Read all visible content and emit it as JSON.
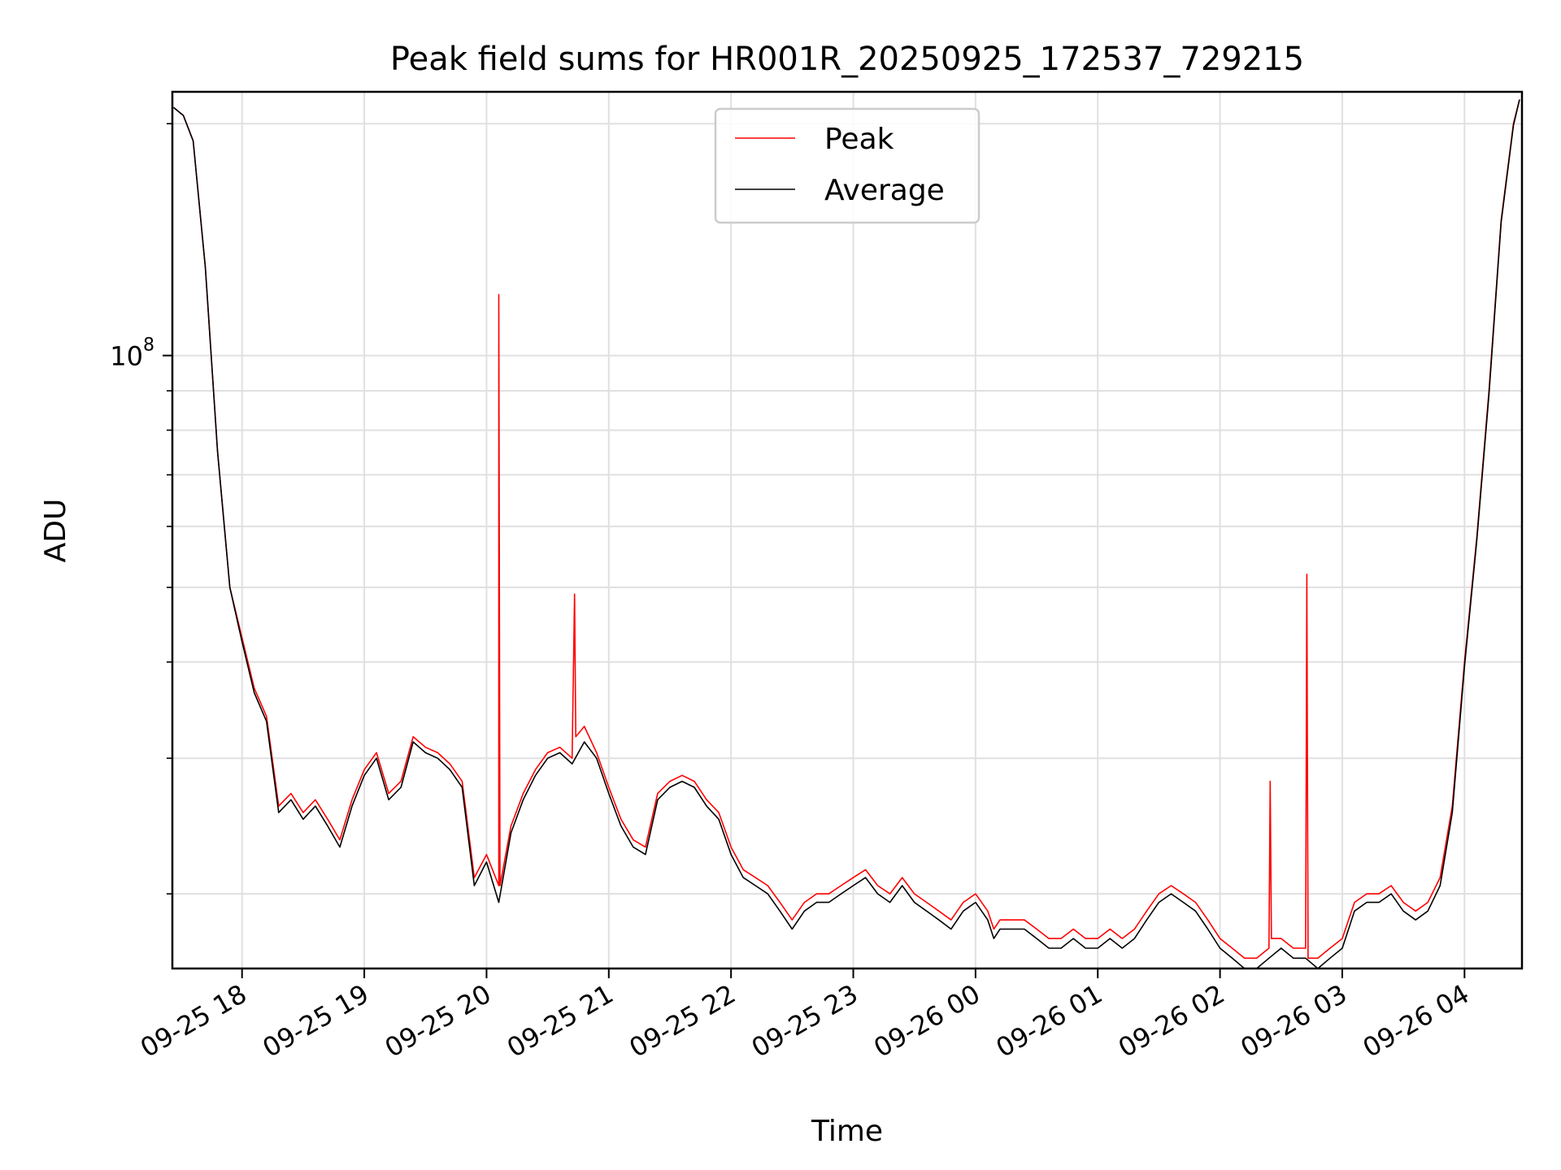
{
  "chart_data": {
    "type": "line",
    "title": "Peak field sums for HR001R_20250925_172537_729215",
    "xlabel": "Time",
    "ylabel": "ADU",
    "yscale": "log",
    "ylim": [
      16000000,
      220000000
    ],
    "xlim_hours": [
      17.43,
      28.47
    ],
    "grid": true,
    "legend_position": "upper center",
    "x_ticks": [
      {
        "label": "09-25 18",
        "value": 18
      },
      {
        "label": "09-25 19",
        "value": 19
      },
      {
        "label": "09-25 20",
        "value": 20
      },
      {
        "label": "09-25 21",
        "value": 21
      },
      {
        "label": "09-25 22",
        "value": 22
      },
      {
        "label": "09-25 23",
        "value": 23
      },
      {
        "label": "09-26 00",
        "value": 24
      },
      {
        "label": "09-26 01",
        "value": 25
      },
      {
        "label": "09-26 02",
        "value": 26
      },
      {
        "label": "09-26 03",
        "value": 27
      },
      {
        "label": "09-26 04",
        "value": 28
      }
    ],
    "y_major_ticks": [
      {
        "value": 100000000,
        "base": "10",
        "exp": "8"
      }
    ],
    "y_minor_ticks": [
      20000000,
      30000000,
      40000000,
      50000000,
      60000000,
      70000000,
      80000000,
      90000000,
      200000000
    ],
    "series": [
      {
        "name": "Peak",
        "color": "#ff0000",
        "x": [
          17.44,
          17.52,
          17.6,
          17.7,
          17.8,
          17.9,
          18.0,
          18.1,
          18.2,
          18.3,
          18.4,
          18.5,
          18.6,
          18.7,
          18.8,
          18.9,
          19.0,
          19.1,
          19.2,
          19.3,
          19.4,
          19.5,
          19.6,
          19.7,
          19.8,
          19.9,
          20.0,
          20.1,
          20.1,
          20.11,
          20.2,
          20.3,
          20.4,
          20.5,
          20.6,
          20.7,
          20.72,
          20.73,
          20.8,
          20.9,
          21.0,
          21.1,
          21.2,
          21.3,
          21.4,
          21.5,
          21.6,
          21.7,
          21.8,
          21.9,
          22.0,
          22.1,
          22.2,
          22.3,
          22.4,
          22.5,
          22.6,
          22.7,
          22.8,
          22.9,
          23.0,
          23.1,
          23.2,
          23.3,
          23.4,
          23.5,
          23.6,
          23.7,
          23.8,
          23.9,
          24.0,
          24.1,
          24.15,
          24.2,
          24.3,
          24.4,
          24.5,
          24.6,
          24.7,
          24.8,
          24.9,
          25.0,
          25.1,
          25.2,
          25.3,
          25.4,
          25.5,
          25.6,
          25.7,
          25.8,
          25.9,
          26.0,
          26.1,
          26.2,
          26.3,
          26.4,
          26.41,
          26.42,
          26.5,
          26.6,
          26.7,
          26.71,
          26.72,
          26.8,
          26.9,
          27.0,
          27.1,
          27.2,
          27.3,
          27.4,
          27.5,
          27.6,
          27.7,
          27.8,
          27.9,
          28.0,
          28.1,
          28.2,
          28.3,
          28.4,
          28.45
        ],
        "y": [
          210000000,
          205000000,
          190000000,
          130000000,
          75000000,
          50000000,
          43000000,
          37000000,
          34000000,
          26000000,
          27000000,
          25500000,
          26500000,
          25000000,
          23500000,
          26500000,
          29000000,
          30500000,
          27000000,
          28000000,
          32000000,
          31000000,
          30500000,
          29500000,
          28000000,
          21000000,
          22500000,
          20500000,
          120000000,
          20500000,
          24500000,
          27000000,
          29000000,
          30500000,
          31000000,
          30000000,
          49000000,
          32000000,
          33000000,
          30500000,
          27500000,
          25000000,
          23500000,
          23000000,
          27000000,
          28000000,
          28500000,
          28000000,
          26500000,
          25500000,
          23000000,
          21500000,
          21000000,
          20500000,
          19500000,
          18500000,
          19500000,
          20000000,
          20000000,
          20500000,
          21000000,
          21500000,
          20500000,
          20000000,
          21000000,
          20000000,
          19500000,
          19000000,
          18500000,
          19500000,
          20000000,
          19000000,
          18000000,
          18500000,
          18500000,
          18500000,
          18000000,
          17500000,
          17500000,
          18000000,
          17500000,
          17500000,
          18000000,
          17500000,
          18000000,
          19000000,
          20000000,
          20500000,
          20000000,
          19500000,
          18500000,
          17500000,
          17000000,
          16500000,
          16500000,
          17000000,
          28000000,
          17500000,
          17500000,
          17000000,
          17000000,
          52000000,
          16500000,
          16500000,
          17000000,
          17500000,
          19500000,
          20000000,
          20000000,
          20500000,
          19500000,
          19000000,
          19500000,
          21000000,
          26000000,
          40000000,
          58000000,
          90000000,
          150000000,
          200000000,
          215000000
        ]
      },
      {
        "name": "Average",
        "color": "#000000",
        "x": [
          17.44,
          17.52,
          17.6,
          17.7,
          17.8,
          17.9,
          18.0,
          18.1,
          18.2,
          18.3,
          18.4,
          18.5,
          18.6,
          18.7,
          18.8,
          18.9,
          19.0,
          19.1,
          19.2,
          19.3,
          19.4,
          19.5,
          19.6,
          19.7,
          19.8,
          19.9,
          20.0,
          20.1,
          20.2,
          20.3,
          20.4,
          20.5,
          20.6,
          20.7,
          20.8,
          20.9,
          21.0,
          21.1,
          21.2,
          21.3,
          21.4,
          21.5,
          21.6,
          21.7,
          21.8,
          21.9,
          22.0,
          22.1,
          22.2,
          22.3,
          22.4,
          22.5,
          22.6,
          22.7,
          22.8,
          22.9,
          23.0,
          23.1,
          23.2,
          23.3,
          23.4,
          23.5,
          23.6,
          23.7,
          23.8,
          23.9,
          24.0,
          24.1,
          24.15,
          24.2,
          24.3,
          24.4,
          24.5,
          24.6,
          24.7,
          24.8,
          24.9,
          25.0,
          25.1,
          25.2,
          25.3,
          25.4,
          25.5,
          25.6,
          25.7,
          25.8,
          25.9,
          26.0,
          26.1,
          26.2,
          26.3,
          26.4,
          26.5,
          26.6,
          26.7,
          26.8,
          26.9,
          27.0,
          27.1,
          27.2,
          27.3,
          27.4,
          27.5,
          27.6,
          27.7,
          27.8,
          27.9,
          28.0,
          28.1,
          28.2,
          28.3,
          28.4,
          28.45
        ],
        "y": [
          210000000,
          205000000,
          190000000,
          130000000,
          75000000,
          50000000,
          42500000,
          36500000,
          33500000,
          25500000,
          26500000,
          25000000,
          26000000,
          24500000,
          23000000,
          26000000,
          28500000,
          30000000,
          26500000,
          27500000,
          31500000,
          30500000,
          30000000,
          29000000,
          27500000,
          20500000,
          22000000,
          19500000,
          24000000,
          26500000,
          28500000,
          30000000,
          30500000,
          29500000,
          31500000,
          30000000,
          27000000,
          24500000,
          23000000,
          22500000,
          26500000,
          27500000,
          28000000,
          27500000,
          26000000,
          25000000,
          22500000,
          21000000,
          20500000,
          20000000,
          19000000,
          18000000,
          19000000,
          19500000,
          19500000,
          20000000,
          20500000,
          21000000,
          20000000,
          19500000,
          20500000,
          19500000,
          19000000,
          18500000,
          18000000,
          19000000,
          19500000,
          18500000,
          17500000,
          18000000,
          18000000,
          18000000,
          17500000,
          17000000,
          17000000,
          17500000,
          17000000,
          17000000,
          17500000,
          17000000,
          17500000,
          18500000,
          19500000,
          20000000,
          19500000,
          19000000,
          18000000,
          17000000,
          16500000,
          16000000,
          16000000,
          16500000,
          17000000,
          16500000,
          16500000,
          16000000,
          16500000,
          17000000,
          19000000,
          19500000,
          19500000,
          20000000,
          19000000,
          18500000,
          19000000,
          20500000,
          25500000,
          39500000,
          57500000,
          89000000,
          149000000,
          199000000,
          215000000
        ]
      }
    ]
  }
}
